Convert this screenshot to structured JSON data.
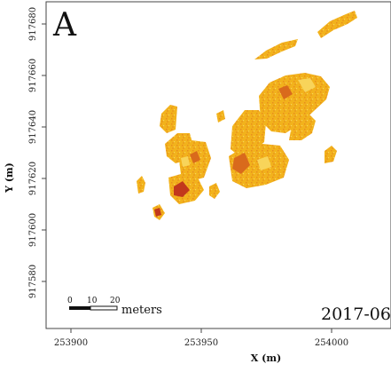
{
  "panel": {
    "letter": "A",
    "date": "2017-06"
  },
  "axes": {
    "x": {
      "label": "X (m)",
      "ticks": [
        "253900",
        "253950",
        "254000"
      ]
    },
    "y": {
      "label": "Y (m)",
      "ticks": [
        "917680",
        "917660",
        "917640",
        "917620",
        "917600",
        "917580"
      ]
    }
  },
  "scalebar": {
    "ticks": [
      "0",
      "10",
      "20"
    ],
    "unit": "meters"
  },
  "colors": {
    "patch_main": "#f2b21c",
    "patch_light": "#f7cc45",
    "patch_dark": "#d96a1c",
    "patch_red": "#c2381c",
    "frame": "#444444"
  }
}
